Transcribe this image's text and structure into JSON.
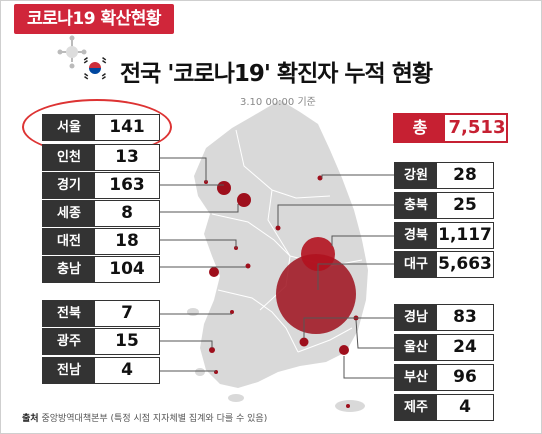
{
  "header": {
    "tag": "코로나19 확산현황",
    "title": "전국 '코로나19' 확진자 누적 현황",
    "subtitle": "3.10 00:00 기준"
  },
  "total": {
    "label": "총",
    "value": "7,513"
  },
  "regions_left": [
    {
      "label": "서울",
      "value": "141"
    },
    {
      "label": "인천",
      "value": "13"
    },
    {
      "label": "경기",
      "value": "163"
    },
    {
      "label": "세종",
      "value": "8"
    },
    {
      "label": "대전",
      "value": "18"
    },
    {
      "label": "충남",
      "value": "104"
    },
    {
      "label": "전북",
      "value": "7"
    },
    {
      "label": "광주",
      "value": "15"
    },
    {
      "label": "전남",
      "value": "4"
    }
  ],
  "regions_right": [
    {
      "label": "강원",
      "value": "28"
    },
    {
      "label": "충북",
      "value": "25"
    },
    {
      "label": "경북",
      "value": "1,117"
    },
    {
      "label": "대구",
      "value": "5,663"
    },
    {
      "label": "경남",
      "value": "83"
    },
    {
      "label": "울산",
      "value": "24"
    },
    {
      "label": "부산",
      "value": "96"
    },
    {
      "label": "제주",
      "value": "4"
    }
  ],
  "source": {
    "label": "출처",
    "text": "중앙방역대책본부 (특정 시점 지자체별 집계와 다를 수 있음)"
  },
  "colors": {
    "accent": "#c62032",
    "dark": "#333333",
    "map": "#d9d9d9",
    "bubble": "#9e0f1c"
  }
}
